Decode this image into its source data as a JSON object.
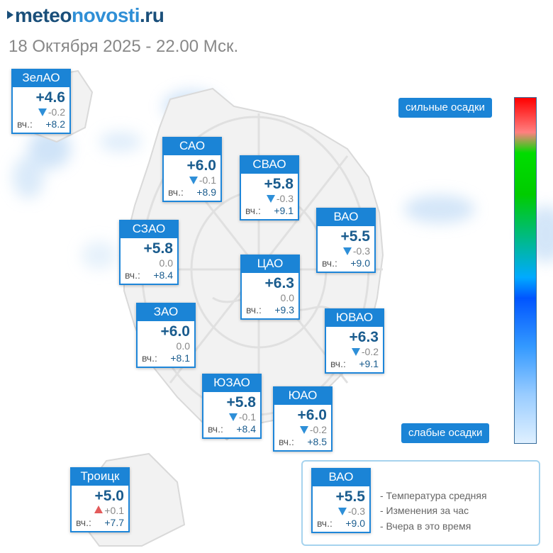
{
  "header": {
    "logo_prefix": "meteo",
    "logo_middle": "novosti",
    "logo_suffix": ".ru",
    "subtitle": "18 Октября 2025 - 22.00 Мск."
  },
  "districts": [
    {
      "name": "ЗелАО",
      "temp": "+4.6",
      "change": "-0.2",
      "trend": "down",
      "yesterday_label": "вч.:",
      "yesterday": "+8.2"
    },
    {
      "name": "САО",
      "temp": "+6.0",
      "change": "-0.1",
      "trend": "down",
      "yesterday_label": "вч.:",
      "yesterday": "+8.9"
    },
    {
      "name": "СВАО",
      "temp": "+5.8",
      "change": "-0.3",
      "trend": "down",
      "yesterday_label": "вч.:",
      "yesterday": "+9.1"
    },
    {
      "name": "ВАО",
      "temp": "+5.5",
      "change": "-0.3",
      "trend": "down",
      "yesterday_label": "вч.:",
      "yesterday": "+9.0"
    },
    {
      "name": "СЗАО",
      "temp": "+5.8",
      "change": "0.0",
      "trend": "none",
      "yesterday_label": "вч.:",
      "yesterday": "+8.4"
    },
    {
      "name": "ЦАО",
      "temp": "+6.3",
      "change": "0.0",
      "trend": "none",
      "yesterday_label": "вч.:",
      "yesterday": "+9.3"
    },
    {
      "name": "ЗАО",
      "temp": "+6.0",
      "change": "0.0",
      "trend": "none",
      "yesterday_label": "вч.:",
      "yesterday": "+8.1"
    },
    {
      "name": "ЮВАО",
      "temp": "+6.3",
      "change": "-0.2",
      "trend": "down",
      "yesterday_label": "вч.:",
      "yesterday": "+9.1"
    },
    {
      "name": "ЮЗАО",
      "temp": "+5.8",
      "change": "-0.1",
      "trend": "down",
      "yesterday_label": "вч.:",
      "yesterday": "+8.4"
    },
    {
      "name": "ЮАО",
      "temp": "+6.0",
      "change": "-0.2",
      "trend": "down",
      "yesterday_label": "вч.:",
      "yesterday": "+8.5"
    },
    {
      "name": "Троицк",
      "temp": "+5.0",
      "change": "+0.1",
      "trend": "up",
      "yesterday_label": "вч.:",
      "yesterday": "+7.7"
    }
  ],
  "scale": {
    "top_label": "сильные осадки",
    "bottom_label": "слабые осадки"
  },
  "legend": {
    "sample": {
      "name": "ВАО",
      "temp": "+5.5",
      "change": "-0.3",
      "trend": "down",
      "yesterday_label": "вч.:",
      "yesterday": "+9.0"
    },
    "line_temp": "- Температура средняя",
    "line_change": "- Изменения за час",
    "line_yesterday": "- Вчера в это время"
  },
  "colors": {
    "accent": "#1b84d6",
    "temperature": "#1a5c8e",
    "trend_down": "#2e8fd8",
    "trend_up": "#e35b5b"
  }
}
